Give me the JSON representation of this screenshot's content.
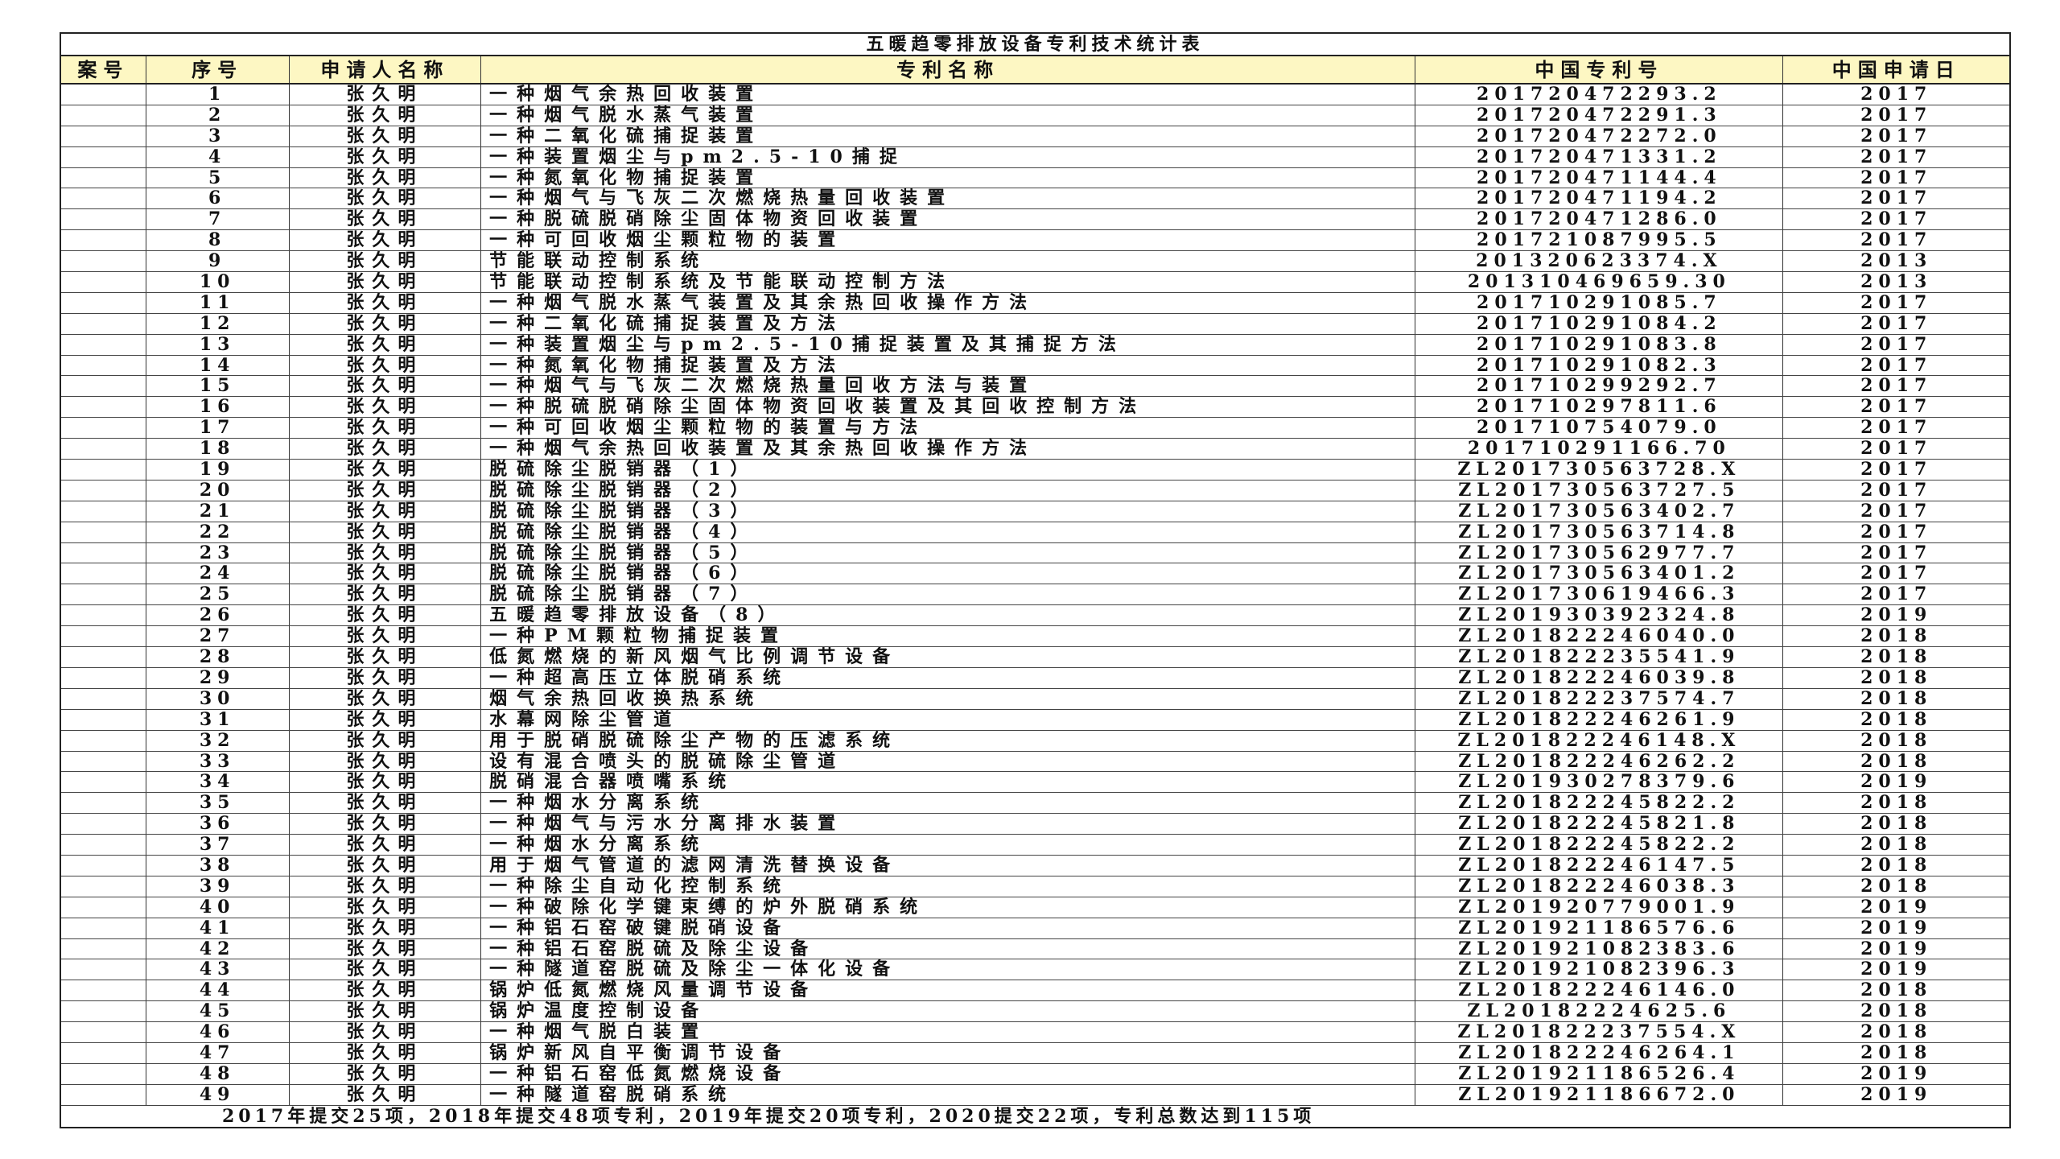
{
  "title": "五暖趋零排放设备专利技术统计表",
  "columns": [
    "案号",
    "序号",
    "申请人名称",
    "专利名称",
    "中国专利号",
    "中国申请日"
  ],
  "rows": [
    [
      "",
      "1",
      "张久明",
      "一种烟气余热回收装置",
      "201720472293.2",
      "2017"
    ],
    [
      "",
      "2",
      "张久明",
      "一种烟气脱水蒸气装置",
      "201720472291.3",
      "2017"
    ],
    [
      "",
      "3",
      "张久明",
      "一种二氧化硫捕捉装置",
      "201720472272.0",
      "2017"
    ],
    [
      "",
      "4",
      "张久明",
      "一种装置烟尘与pm2.5-10捕捉",
      "201720471331.2",
      "2017"
    ],
    [
      "",
      "5",
      "张久明",
      "一种氮氧化物捕捉装置",
      "201720471144.4",
      "2017"
    ],
    [
      "",
      "6",
      "张久明",
      "一种烟气与飞灰二次燃烧热量回收装置",
      "201720471194.2",
      "2017"
    ],
    [
      "",
      "7",
      "张久明",
      "一种脱硫脱硝除尘固体物资回收装置",
      "201720471286.0",
      "2017"
    ],
    [
      "",
      "8",
      "张久明",
      "一种可回收烟尘颗粒物的装置",
      "201721087995.5",
      "2017"
    ],
    [
      "",
      "9",
      "张久明",
      "节能联动控制系统",
      "201320623374.X",
      "2013"
    ],
    [
      "",
      "10",
      "张久明",
      "节能联动控制系统及节能联动控制方法",
      "201310469659.30",
      "2013"
    ],
    [
      "",
      "11",
      "张久明",
      "一种烟气脱水蒸气装置及其余热回收操作方法",
      "201710291085.7",
      "2017"
    ],
    [
      "",
      "12",
      "张久明",
      "一种二氧化硫捕捉装置及方法",
      "201710291084.2",
      "2017"
    ],
    [
      "",
      "13",
      "张久明",
      "一种装置烟尘与pm2.5-10捕捉装置及其捕捉方法",
      "201710291083.8",
      "2017"
    ],
    [
      "",
      "14",
      "张久明",
      "一种氮氧化物捕捉装置及方法",
      "201710291082.3",
      "2017"
    ],
    [
      "",
      "15",
      "张久明",
      "一种烟气与飞灰二次燃烧热量回收方法与装置",
      "201710299292.7",
      "2017"
    ],
    [
      "",
      "16",
      "张久明",
      "一种脱硫脱硝除尘固体物资回收装置及其回收控制方法",
      "201710297811.6",
      "2017"
    ],
    [
      "",
      "17",
      "张久明",
      "一种可回收烟尘颗粒物的装置与方法",
      "201710754079.0",
      "2017"
    ],
    [
      "",
      "18",
      "张久明",
      "一种烟气余热回收装置及其余热回收操作方法",
      "201710291166.70",
      "2017"
    ],
    [
      "",
      "19",
      "张久明",
      "脱硫除尘脱销器（1）",
      "ZL201730563728.X",
      "2017"
    ],
    [
      "",
      "20",
      "张久明",
      "脱硫除尘脱销器（2）",
      "ZL201730563727.5",
      "2017"
    ],
    [
      "",
      "21",
      "张久明",
      "脱硫除尘脱销器（3）",
      "ZL201730563402.7",
      "2017"
    ],
    [
      "",
      "22",
      "张久明",
      "脱硫除尘脱销器（4）",
      "ZL201730563714.8",
      "2017"
    ],
    [
      "",
      "23",
      "张久明",
      "脱硫除尘脱销器（5）",
      "ZL201730562977.7",
      "2017"
    ],
    [
      "",
      "24",
      "张久明",
      "脱硫除尘脱销器（6）",
      "ZL201730563401.2",
      "2017"
    ],
    [
      "",
      "25",
      "张久明",
      "脱硫除尘脱销器（7）",
      "ZL201730619466.3",
      "2017"
    ],
    [
      "",
      "26",
      "张久明",
      "五暖趋零排放设备（8）",
      "ZL201930392324.8",
      "2019"
    ],
    [
      "",
      "27",
      "张久明",
      "一种PM颗粒物捕捉装置",
      "ZL201822246040.0",
      "2018"
    ],
    [
      "",
      "28",
      "张久明",
      "低氮燃烧的新风烟气比例调节设备",
      "ZL201822235541.9",
      "2018"
    ],
    [
      "",
      "29",
      "张久明",
      "一种超高压立体脱硝系统",
      "ZL201822246039.8",
      "2018"
    ],
    [
      "",
      "30",
      "张久明",
      "烟气余热回收换热系统",
      "ZL201822237574.7",
      "2018"
    ],
    [
      "",
      "31",
      "张久明",
      "水幕网除尘管道",
      "ZL201822246261.9",
      "2018"
    ],
    [
      "",
      "32",
      "张久明",
      "用于脱硝脱硫除尘产物的压滤系统",
      "ZL201822246148.X",
      "2018"
    ],
    [
      "",
      "33",
      "张久明",
      "设有混合喷头的脱硫除尘管道",
      "ZL201822246262.2",
      "2018"
    ],
    [
      "",
      "34",
      "张久明",
      "脱硝混合器喷嘴系统",
      "ZL201930278379.6",
      "2019"
    ],
    [
      "",
      "35",
      "张久明",
      "一种烟水分离系统",
      "ZL201822245822.2",
      "2018"
    ],
    [
      "",
      "36",
      "张久明",
      "一种烟气与污水分离排水装置",
      "ZL201822245821.8",
      "2018"
    ],
    [
      "",
      "37",
      "张久明",
      "一种烟水分离系统",
      "ZL201822245822.2",
      "2018"
    ],
    [
      "",
      "38",
      "张久明",
      "用于烟气管道的滤网清洗替换设备",
      "ZL201822246147.5",
      "2018"
    ],
    [
      "",
      "39",
      "张久明",
      "一种除尘自动化控制系统",
      "ZL201822246038.3",
      "2018"
    ],
    [
      "",
      "40",
      "张久明",
      "一种破除化学键束缚的炉外脱硝系统",
      "ZL201920779001.9",
      "2019"
    ],
    [
      "",
      "41",
      "张久明",
      "一种铝石窑破键脱硝设备",
      "ZL201921186576.6",
      "2019"
    ],
    [
      "",
      "42",
      "张久明",
      "一种铝石窑脱硫及除尘设备",
      "ZL201921082383.6",
      "2019"
    ],
    [
      "",
      "43",
      "张久明",
      "一种隧道窑脱硫及除尘一体化设备",
      "ZL201921082396.3",
      "2019"
    ],
    [
      "",
      "44",
      "张久明",
      "锅炉低氮燃烧风量调节设备",
      "ZL201822246146.0",
      "2018"
    ],
    [
      "",
      "45",
      "张久明",
      "锅炉温度控制设备",
      "ZL20182224625.6",
      "2018"
    ],
    [
      "",
      "46",
      "张久明",
      "一种烟气脱白装置",
      "ZL201822237554.X",
      "2018"
    ],
    [
      "",
      "47",
      "张久明",
      "锅炉新风自平衡调节设备",
      "ZL201822246264.1",
      "2018"
    ],
    [
      "",
      "48",
      "张久明",
      "一种铝石窑低氮燃烧设备",
      "ZL201921186526.4",
      "2019"
    ],
    [
      "",
      "49",
      "张久明",
      "一种隧道窑脱硝系统",
      "ZL201921186672.0",
      "2019"
    ]
  ],
  "footer": "2017年提交25项，2018年提交48项专利，2019年提交20项专利，2020提交22项，专利总数达到115项",
  "colors": {
    "header_bg": "#fdf7c3",
    "border": "#222222"
  }
}
